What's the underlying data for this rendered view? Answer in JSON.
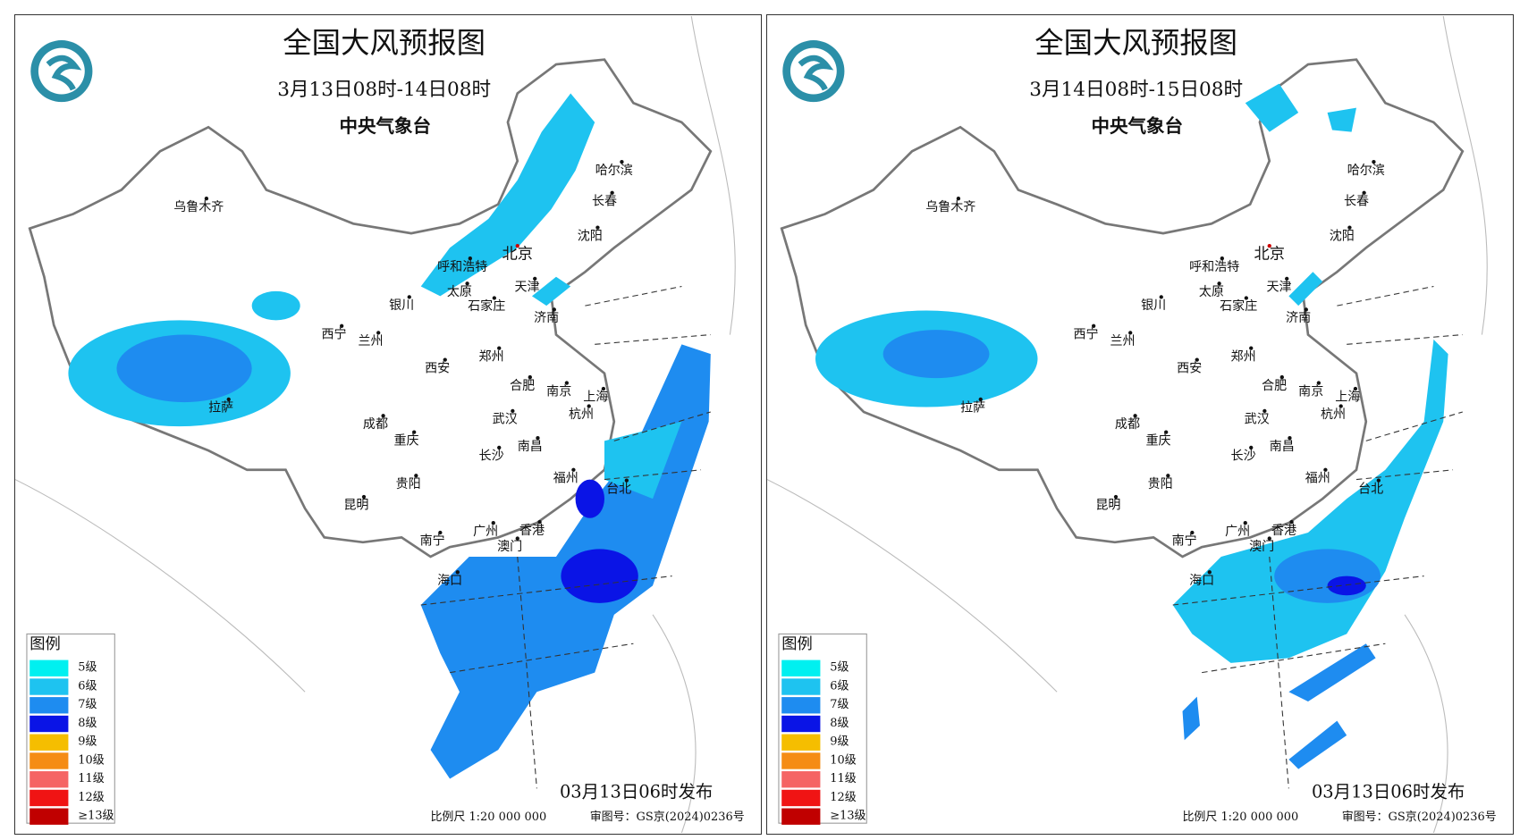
{
  "panels": [
    {
      "title": "全国大风预报图",
      "period": "3月13日08时-14日08时",
      "agency": "中央气象台",
      "cities": [
        "乌鲁木齐",
        "哈尔滨",
        "长春",
        "沈阳",
        "北京",
        "呼和浩特",
        "天津",
        "太原",
        "石家庄",
        "银川",
        "济南",
        "西宁",
        "兰州",
        "郑州",
        "西安",
        "合肥",
        "南京",
        "上海",
        "拉萨",
        "杭州",
        "成都",
        "武汉",
        "重庆",
        "南昌",
        "长沙",
        "福州",
        "贵阳",
        "台北",
        "昆明",
        "南宁",
        "广州",
        "香港",
        "澳门",
        "海口"
      ],
      "legend": {
        "title": "图例",
        "items": [
          {
            "label": "5级",
            "color": "#00f0f0"
          },
          {
            "label": "6级",
            "color": "#1ec3f0"
          },
          {
            "label": "7级",
            "color": "#1e8cf0"
          },
          {
            "label": "8级",
            "color": "#0a14e6"
          },
          {
            "label": "9级",
            "color": "#f5be00"
          },
          {
            "label": "10级",
            "color": "#f58c14"
          },
          {
            "label": "11级",
            "color": "#f56464"
          },
          {
            "label": "12级",
            "color": "#f01414"
          },
          {
            "label": "≥13级",
            "color": "#c00000"
          }
        ]
      },
      "release": "03月13日06时发布",
      "scale": "比例尺 1:20 000 000",
      "review": "审图号：GS京(2024)0236号"
    },
    {
      "title": "全国大风预报图",
      "period": "3月14日08时-15日08时",
      "agency": "中央气象台",
      "cities": [
        "乌鲁木齐",
        "哈尔滨",
        "长春",
        "沈阳",
        "北京",
        "呼和浩特",
        "天津",
        "太原",
        "石家庄",
        "银川",
        "济南",
        "西宁",
        "兰州",
        "郑州",
        "西安",
        "合肥",
        "南京",
        "上海",
        "拉萨",
        "杭州",
        "成都",
        "武汉",
        "重庆",
        "南昌",
        "长沙",
        "福州",
        "贵阳",
        "台北",
        "昆明",
        "南宁",
        "广州",
        "香港",
        "澳门",
        "海口"
      ],
      "legend": {
        "title": "图例",
        "items": [
          {
            "label": "5级",
            "color": "#00f0f0"
          },
          {
            "label": "6级",
            "color": "#1ec3f0"
          },
          {
            "label": "7级",
            "color": "#1e8cf0"
          },
          {
            "label": "8级",
            "color": "#0a14e6"
          },
          {
            "label": "9级",
            "color": "#f5be00"
          },
          {
            "label": "10级",
            "color": "#f58c14"
          },
          {
            "label": "11级",
            "color": "#f56464"
          },
          {
            "label": "12级",
            "color": "#f01414"
          },
          {
            "label": "≥13级",
            "color": "#c00000"
          }
        ]
      },
      "release": "03月13日06时发布",
      "scale": "比例尺 1:20 000 000",
      "review": "审图号：GS京(2024)0236号"
    }
  ]
}
